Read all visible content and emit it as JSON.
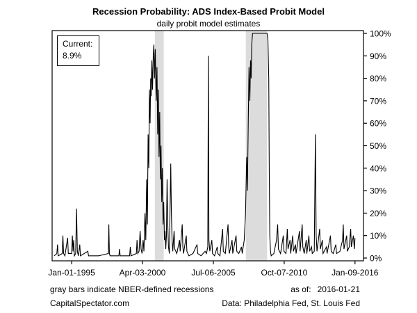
{
  "chart_data": {
    "type": "line",
    "title": "Recession Probability: ADS Index-Based Probit Model",
    "subtitle": "daily probit model estimates",
    "annotation": {
      "label": "Current:",
      "value": "8.9%"
    },
    "grid": false,
    "legend": false,
    "band_color": "#dcdcdc",
    "line_color": "#000000",
    "x_axis": {
      "domain": [
        1993.55,
        2016.65
      ],
      "ticks": [
        {
          "year": 1995.0,
          "label": "Jan-01-1995"
        },
        {
          "year": 2000.255,
          "label": "Apr-03-2000"
        },
        {
          "year": 2005.51,
          "label": "Jul-06-2005"
        },
        {
          "year": 2010.765,
          "label": "Oct-07-2010"
        },
        {
          "year": 2016.02,
          "label": "Jan-09-2016"
        }
      ]
    },
    "y_axis": {
      "min": 0,
      "max": 100,
      "step": 10,
      "position": "right",
      "tick_labels": [
        "0%",
        "10%",
        "20%",
        "30%",
        "40%",
        "50%",
        "60%",
        "70%",
        "80%",
        "90%",
        "100%"
      ]
    },
    "recession_bands": [
      [
        2001.17,
        2001.83
      ],
      [
        2007.92,
        2009.5
      ]
    ],
    "series": [
      {
        "name": "recession probability (%)",
        "color": "#000000",
        "points": [
          [
            1993.7,
            1
          ],
          [
            1993.9,
            2
          ],
          [
            1993.95,
            6
          ],
          [
            1994.0,
            1
          ],
          [
            1994.3,
            2
          ],
          [
            1994.35,
            10
          ],
          [
            1994.4,
            2
          ],
          [
            1994.5,
            1
          ],
          [
            1994.7,
            9
          ],
          [
            1994.75,
            2
          ],
          [
            1995.0,
            2
          ],
          [
            1995.05,
            10
          ],
          [
            1995.1,
            3
          ],
          [
            1995.15,
            8
          ],
          [
            1995.2,
            1
          ],
          [
            1995.3,
            2
          ],
          [
            1995.36,
            22
          ],
          [
            1995.42,
            3
          ],
          [
            1995.5,
            1
          ],
          [
            1995.6,
            6
          ],
          [
            1995.65,
            1
          ],
          [
            1996.2,
            3
          ],
          [
            1996.25,
            1
          ],
          [
            1997.0,
            1
          ],
          [
            1997.72,
            2
          ],
          [
            1997.76,
            15
          ],
          [
            1997.8,
            2
          ],
          [
            1997.85,
            1
          ],
          [
            1998.5,
            1
          ],
          [
            1998.55,
            4
          ],
          [
            1998.6,
            1
          ],
          [
            1999.3,
            1
          ],
          [
            1999.35,
            5
          ],
          [
            1999.4,
            1
          ],
          [
            1999.8,
            2
          ],
          [
            1999.85,
            8
          ],
          [
            1999.9,
            2
          ],
          [
            2000.0,
            3
          ],
          [
            2000.08,
            12
          ],
          [
            2000.15,
            4
          ],
          [
            2000.22,
            2
          ],
          [
            2000.3,
            8
          ],
          [
            2000.36,
            3
          ],
          [
            2000.44,
            20
          ],
          [
            2000.5,
            8
          ],
          [
            2000.56,
            35
          ],
          [
            2000.62,
            15
          ],
          [
            2000.67,
            55
          ],
          [
            2000.72,
            40
          ],
          [
            2000.77,
            75
          ],
          [
            2000.82,
            60
          ],
          [
            2000.86,
            80
          ],
          [
            2000.9,
            72
          ],
          [
            2000.95,
            88
          ],
          [
            2001.0,
            75
          ],
          [
            2001.05,
            90
          ],
          [
            2001.1,
            95
          ],
          [
            2001.15,
            80
          ],
          [
            2001.2,
            93
          ],
          [
            2001.27,
            70
          ],
          [
            2001.33,
            85
          ],
          [
            2001.38,
            55
          ],
          [
            2001.43,
            75
          ],
          [
            2001.48,
            45
          ],
          [
            2001.53,
            65
          ],
          [
            2001.58,
            35
          ],
          [
            2001.63,
            50
          ],
          [
            2001.68,
            25
          ],
          [
            2001.73,
            40
          ],
          [
            2001.78,
            15
          ],
          [
            2001.83,
            25
          ],
          [
            2001.88,
            8
          ],
          [
            2001.93,
            12
          ],
          [
            2001.98,
            4
          ],
          [
            2002.03,
            10
          ],
          [
            2002.08,
            35
          ],
          [
            2002.13,
            15
          ],
          [
            2002.18,
            5
          ],
          [
            2002.25,
            2
          ],
          [
            2002.35,
            42
          ],
          [
            2002.4,
            20
          ],
          [
            2002.45,
            8
          ],
          [
            2002.5,
            3
          ],
          [
            2002.6,
            12
          ],
          [
            2002.65,
            4
          ],
          [
            2002.8,
            2
          ],
          [
            2003.0,
            8
          ],
          [
            2003.05,
            3
          ],
          [
            2003.2,
            15
          ],
          [
            2003.25,
            5
          ],
          [
            2003.3,
            2
          ],
          [
            2003.5,
            10
          ],
          [
            2003.55,
            3
          ],
          [
            2003.7,
            1
          ],
          [
            2004.0,
            2
          ],
          [
            2004.3,
            6
          ],
          [
            2004.35,
            2
          ],
          [
            2004.6,
            1
          ],
          [
            2004.9,
            3
          ],
          [
            2005.0,
            2
          ],
          [
            2005.1,
            5
          ],
          [
            2005.14,
            90
          ],
          [
            2005.18,
            8
          ],
          [
            2005.25,
            3
          ],
          [
            2005.4,
            8
          ],
          [
            2005.45,
            2
          ],
          [
            2005.6,
            1
          ],
          [
            2005.8,
            5
          ],
          [
            2005.85,
            2
          ],
          [
            2006.0,
            1
          ],
          [
            2006.2,
            13
          ],
          [
            2006.25,
            3
          ],
          [
            2006.4,
            2
          ],
          [
            2006.6,
            15
          ],
          [
            2006.65,
            5
          ],
          [
            2006.7,
            2
          ],
          [
            2006.9,
            8
          ],
          [
            2006.95,
            2
          ],
          [
            2007.2,
            10
          ],
          [
            2007.25,
            3
          ],
          [
            2007.4,
            2
          ],
          [
            2007.6,
            5
          ],
          [
            2007.65,
            2
          ],
          [
            2007.8,
            8
          ],
          [
            2007.9,
            20
          ],
          [
            2007.98,
            45
          ],
          [
            2008.04,
            30
          ],
          [
            2008.1,
            60
          ],
          [
            2008.16,
            85
          ],
          [
            2008.22,
            70
          ],
          [
            2008.27,
            88
          ],
          [
            2008.32,
            80
          ],
          [
            2008.36,
            95
          ],
          [
            2008.42,
            100
          ],
          [
            2009.5,
            100
          ],
          [
            2009.56,
            97
          ],
          [
            2009.62,
            80
          ],
          [
            2009.66,
            40
          ],
          [
            2009.7,
            10
          ],
          [
            2009.75,
            3
          ],
          [
            2009.8,
            1
          ],
          [
            2010.0,
            2
          ],
          [
            2010.2,
            8
          ],
          [
            2010.28,
            15
          ],
          [
            2010.34,
            4
          ],
          [
            2010.5,
            2
          ],
          [
            2010.7,
            10
          ],
          [
            2010.75,
            3
          ],
          [
            2010.9,
            2
          ],
          [
            2011.0,
            13
          ],
          [
            2011.05,
            4
          ],
          [
            2011.2,
            8
          ],
          [
            2011.25,
            2
          ],
          [
            2011.4,
            10
          ],
          [
            2011.45,
            3
          ],
          [
            2011.6,
            6
          ],
          [
            2011.65,
            2
          ],
          [
            2011.9,
            12
          ],
          [
            2011.95,
            3
          ],
          [
            2012.1,
            15
          ],
          [
            2012.15,
            5
          ],
          [
            2012.25,
            2
          ],
          [
            2012.4,
            8
          ],
          [
            2012.45,
            2
          ],
          [
            2012.6,
            10
          ],
          [
            2012.65,
            3
          ],
          [
            2012.8,
            5
          ],
          [
            2012.85,
            2
          ],
          [
            2013.0,
            3
          ],
          [
            2013.08,
            55
          ],
          [
            2013.14,
            10
          ],
          [
            2013.2,
            3
          ],
          [
            2013.4,
            13
          ],
          [
            2013.45,
            4
          ],
          [
            2013.6,
            8
          ],
          [
            2013.65,
            2
          ],
          [
            2013.9,
            5
          ],
          [
            2013.95,
            2
          ],
          [
            2014.2,
            10
          ],
          [
            2014.25,
            3
          ],
          [
            2014.4,
            2
          ],
          [
            2014.6,
            6
          ],
          [
            2014.65,
            2
          ],
          [
            2014.9,
            3
          ],
          [
            2015.1,
            8
          ],
          [
            2015.15,
            15
          ],
          [
            2015.2,
            4
          ],
          [
            2015.4,
            10
          ],
          [
            2015.45,
            3
          ],
          [
            2015.6,
            5
          ],
          [
            2015.7,
            13
          ],
          [
            2015.75,
            5
          ],
          [
            2015.9,
            10
          ],
          [
            2015.97,
            4
          ],
          [
            2016.02,
            8.9
          ]
        ]
      }
    ]
  },
  "footer": {
    "note": "gray bars indicate NBER-defined recessions",
    "as_of_label": "as of:",
    "as_of_date": "2016-01-21",
    "source_left": "CapitalSpectator.com",
    "source_right": "Data: Philadelphia Fed, St. Louis Fed"
  }
}
